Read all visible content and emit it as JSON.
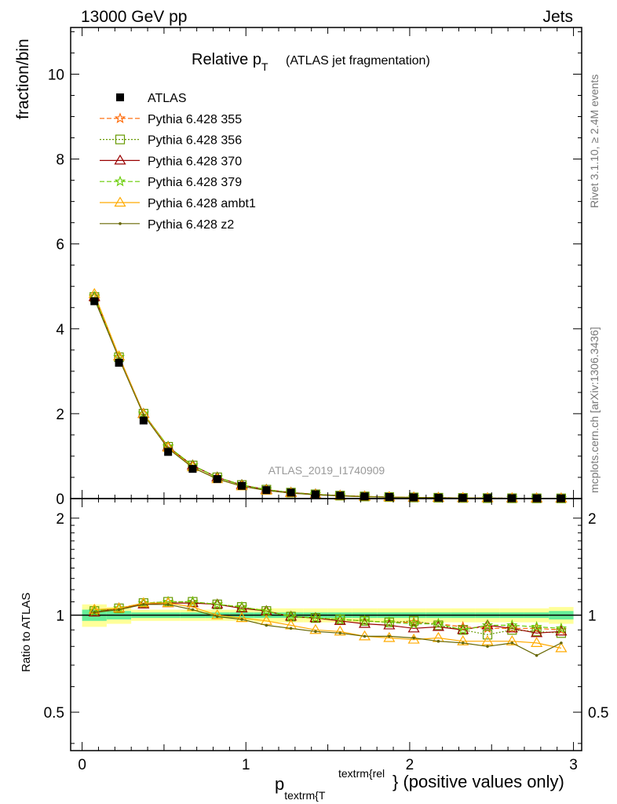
{
  "header": {
    "left": "13000 GeV pp",
    "right": "Jets"
  },
  "side_text": {
    "rivet": "Rivet 3.1.10, ≥ 2.4M events",
    "mcplots": "mcplots.cern.ch [arXiv:1306.3436]"
  },
  "chart_data": [
    {
      "type": "line",
      "title_main": "Relative p",
      "title_sub": "T",
      "title_suffix": "(ATLAS jet fragmentation)",
      "ylabel": "fraction/bin",
      "watermark": "ATLAS_2019_I1740909",
      "ylim": [
        0,
        11.1
      ],
      "xlim": [
        -0.07,
        3.05
      ],
      "yticks": [
        0,
        2,
        4,
        6,
        8,
        10
      ],
      "ytick_labels": [
        "0",
        "2",
        "4",
        "6",
        "8",
        "10"
      ],
      "x": [
        0.075,
        0.225,
        0.375,
        0.525,
        0.675,
        0.825,
        0.975,
        1.125,
        1.275,
        1.425,
        1.575,
        1.725,
        1.875,
        2.025,
        2.175,
        2.325,
        2.475,
        2.625,
        2.775,
        2.925
      ],
      "data": {
        "name": "ATLAS",
        "color": "#000000",
        "values": [
          4.65,
          3.2,
          1.84,
          1.1,
          0.7,
          0.46,
          0.3,
          0.2,
          0.14,
          0.1,
          0.07,
          0.05,
          0.038,
          0.028,
          0.021,
          0.016,
          0.012,
          0.009,
          0.007,
          0.005
        ]
      },
      "series": [
        {
          "name": "Pythia 6.428 355",
          "color": "#ff6600",
          "dash": "6,3",
          "marker": "star",
          "values": [
            4.75,
            3.33,
            2.0,
            1.22,
            0.78,
            0.5,
            0.32,
            0.21,
            0.14,
            0.1,
            0.07,
            0.05,
            0.036,
            0.027,
            0.02,
            0.015,
            0.011,
            0.008,
            0.006,
            0.005
          ]
        },
        {
          "name": "Pythia 6.428 356",
          "color": "#669900",
          "dash": "2,2",
          "marker": "square",
          "values": [
            4.75,
            3.33,
            2.0,
            1.22,
            0.78,
            0.5,
            0.32,
            0.21,
            0.14,
            0.1,
            0.07,
            0.05,
            0.036,
            0.027,
            0.02,
            0.015,
            0.011,
            0.008,
            0.006,
            0.005
          ]
        },
        {
          "name": "Pythia 6.428 370",
          "color": "#990000",
          "dash": "",
          "marker": "triangle",
          "values": [
            4.75,
            3.35,
            2.0,
            1.22,
            0.78,
            0.5,
            0.32,
            0.21,
            0.14,
            0.1,
            0.07,
            0.05,
            0.036,
            0.026,
            0.02,
            0.015,
            0.011,
            0.008,
            0.006,
            0.005
          ]
        },
        {
          "name": "Pythia 6.428 379",
          "color": "#66cc00",
          "dash": "6,3",
          "marker": "star",
          "values": [
            4.76,
            3.34,
            2.0,
            1.23,
            0.78,
            0.5,
            0.32,
            0.21,
            0.14,
            0.1,
            0.07,
            0.05,
            0.036,
            0.027,
            0.02,
            0.015,
            0.011,
            0.008,
            0.006,
            0.005
          ]
        },
        {
          "name": "Pythia 6.428 ambt1",
          "color": "#ffaa00",
          "dash": "",
          "marker": "triangle",
          "values": [
            4.82,
            3.35,
            1.99,
            1.2,
            0.74,
            0.46,
            0.29,
            0.19,
            0.13,
            0.09,
            0.065,
            0.045,
            0.033,
            0.024,
            0.017,
            0.013,
            0.01,
            0.008,
            0.006,
            0.004
          ]
        },
        {
          "name": "Pythia 6.428 z2",
          "color": "#666600",
          "dash": "",
          "marker": "dot",
          "values": [
            4.7,
            3.3,
            1.97,
            1.18,
            0.73,
            0.46,
            0.29,
            0.19,
            0.13,
            0.09,
            0.063,
            0.043,
            0.032,
            0.024,
            0.017,
            0.013,
            0.01,
            0.007,
            0.005,
            0.004
          ]
        }
      ]
    },
    {
      "type": "line",
      "ylabel": "Ratio to ATLAS",
      "xlabel_main": "p",
      "xlabel_sub": "textrm{T",
      "xlabel_sup": "textrm{rel",
      "xlabel_suffix": "} (positive values only)",
      "xlim": [
        -0.07,
        3.05
      ],
      "ylim": [
        0.38,
        2.3
      ],
      "log_y": true,
      "xticks": [
        0,
        1,
        2,
        3
      ],
      "xtick_labels": [
        "0",
        "1",
        "2",
        "3"
      ],
      "yticks": [
        0.5,
        1,
        2
      ],
      "ytick_labels": [
        "0.5",
        "1",
        "2"
      ],
      "reference": 1,
      "band_stat": [
        0.04,
        0.03,
        0.02,
        0.02,
        0.02,
        0.02,
        0.02,
        0.02,
        0.02,
        0.02,
        0.02,
        0.02,
        0.02,
        0.02,
        0.02,
        0.02,
        0.02,
        0.02,
        0.02,
        0.03
      ],
      "band_total": [
        0.08,
        0.06,
        0.04,
        0.04,
        0.04,
        0.04,
        0.04,
        0.05,
        0.05,
        0.05,
        0.05,
        0.05,
        0.05,
        0.05,
        0.05,
        0.05,
        0.05,
        0.05,
        0.05,
        0.06
      ],
      "x": [
        0.075,
        0.225,
        0.375,
        0.525,
        0.675,
        0.825,
        0.975,
        1.125,
        1.275,
        1.425,
        1.575,
        1.725,
        1.875,
        2.025,
        2.175,
        2.325,
        2.475,
        2.625,
        2.775,
        2.925
      ],
      "series": [
        {
          "name": "Pythia 6.428 355",
          "values": [
            1.03,
            1.05,
            1.09,
            1.1,
            1.1,
            1.08,
            1.06,
            1.03,
            0.99,
            0.98,
            0.97,
            0.96,
            0.95,
            0.95,
            0.94,
            0.92,
            0.91,
            0.91,
            0.91,
            0.9
          ]
        },
        {
          "name": "Pythia 6.428 356",
          "values": [
            1.03,
            1.05,
            1.09,
            1.1,
            1.1,
            1.08,
            1.06,
            1.03,
            0.99,
            0.98,
            0.97,
            0.96,
            0.95,
            0.96,
            0.93,
            0.9,
            0.87,
            0.9,
            0.89,
            0.88
          ]
        },
        {
          "name": "Pythia 6.428 370",
          "values": [
            1.02,
            1.05,
            1.08,
            1.09,
            1.09,
            1.08,
            1.05,
            1.03,
            0.99,
            0.98,
            0.96,
            0.94,
            0.93,
            0.91,
            0.92,
            0.9,
            0.93,
            0.91,
            0.88,
            0.89
          ]
        },
        {
          "name": "Pythia 6.428 379",
          "values": [
            1.03,
            1.05,
            1.09,
            1.1,
            1.1,
            1.08,
            1.06,
            1.03,
            0.99,
            0.98,
            0.97,
            0.96,
            0.95,
            0.94,
            0.94,
            0.9,
            0.93,
            0.93,
            0.92,
            0.91
          ]
        },
        {
          "name": "Pythia 6.428 ambt1",
          "values": [
            1.04,
            1.05,
            1.09,
            1.09,
            1.06,
            1.0,
            0.98,
            0.96,
            0.93,
            0.9,
            0.89,
            0.86,
            0.85,
            0.84,
            0.85,
            0.83,
            0.83,
            0.83,
            0.82,
            0.79
          ]
        },
        {
          "name": "Pythia 6.428 z2",
          "values": [
            1.02,
            1.04,
            1.08,
            1.08,
            1.04,
            0.99,
            0.97,
            0.93,
            0.91,
            0.89,
            0.88,
            0.86,
            0.86,
            0.85,
            0.83,
            0.82,
            0.8,
            0.82,
            0.75,
            0.82
          ]
        }
      ]
    }
  ]
}
